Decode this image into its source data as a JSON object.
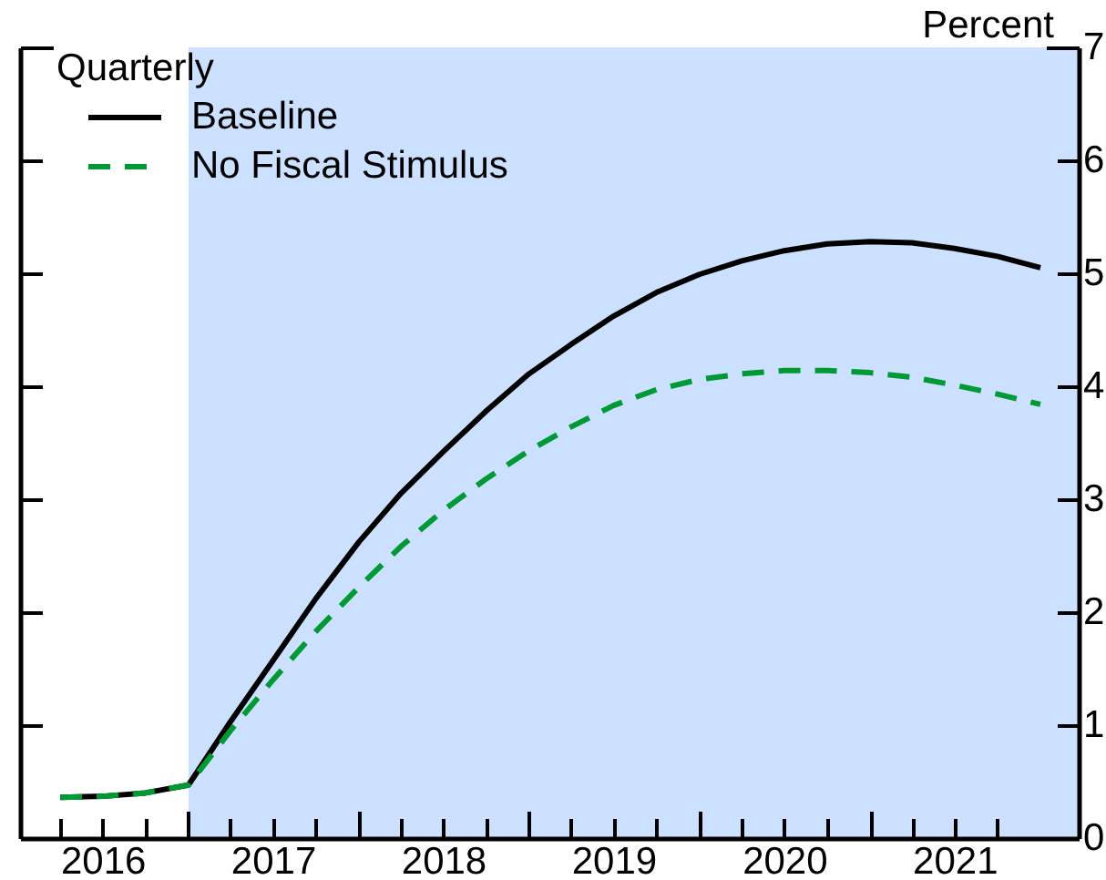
{
  "chart_data": {
    "type": "line",
    "ylabel": "Percent",
    "legend_title": "Quarterly",
    "legend": "top left",
    "x": [
      "2016-04-01",
      "2016-07-01",
      "2016-10-01",
      "2017-01-01",
      "2017-04-01",
      "2017-07-01",
      "2017-10-01",
      "2018-01-01",
      "2018-04-01",
      "2018-07-01",
      "2018-10-01",
      "2019-01-01",
      "2019-04-01",
      "2019-07-01",
      "2019-10-01",
      "2020-01-01",
      "2020-04-01",
      "2020-07-01",
      "2020-10-01",
      "2021-01-01",
      "2021-04-01",
      "2021-07-01",
      "2021-10-01",
      "2022-01-01"
    ],
    "series": [
      {
        "name": "Baseline",
        "color": "#000000",
        "line_style": "solid",
        "values": [
          0.36,
          0.37,
          0.4,
          0.47,
          1.03,
          1.57,
          2.12,
          2.62,
          3.05,
          3.42,
          3.78,
          4.11,
          4.37,
          4.62,
          4.83,
          4.99,
          5.11,
          5.2,
          5.26,
          5.28,
          5.27,
          5.22,
          5.15,
          5.05
        ]
      },
      {
        "name": "No Fiscal Stimulus",
        "color": "#009933",
        "line_style": "dashed",
        "values": [
          0.36,
          0.37,
          0.4,
          0.47,
          0.95,
          1.4,
          1.83,
          2.22,
          2.58,
          2.9,
          3.18,
          3.43,
          3.64,
          3.83,
          3.97,
          4.06,
          4.11,
          4.14,
          4.14,
          4.12,
          4.08,
          4.01,
          3.93,
          3.84
        ]
      }
    ],
    "xlim": [
      "2016-01-06",
      "2022-03-24"
    ],
    "xticks": [
      {
        "value": "2016-04-01",
        "label": null
      },
      {
        "value": "2016-07-01",
        "label": "2016"
      },
      {
        "value": "2016-10-01",
        "label": null
      },
      {
        "value": "2017-01-01",
        "label": null
      },
      {
        "value": "2017-04-01",
        "label": null
      },
      {
        "value": "2017-07-01",
        "label": "2017"
      },
      {
        "value": "2017-10-01",
        "label": null
      },
      {
        "value": "2018-01-01",
        "label": null
      },
      {
        "value": "2018-04-01",
        "label": null
      },
      {
        "value": "2018-07-01",
        "label": "2018"
      },
      {
        "value": "2018-10-01",
        "label": null
      },
      {
        "value": "2019-01-01",
        "label": null
      },
      {
        "value": "2019-04-01",
        "label": null
      },
      {
        "value": "2019-07-01",
        "label": "2019"
      },
      {
        "value": "2019-10-01",
        "label": null
      },
      {
        "value": "2020-01-01",
        "label": null
      },
      {
        "value": "2020-04-01",
        "label": null
      },
      {
        "value": "2020-07-01",
        "label": "2020"
      },
      {
        "value": "2020-10-01",
        "label": null
      },
      {
        "value": "2021-01-01",
        "label": null
      },
      {
        "value": "2021-04-01",
        "label": null
      },
      {
        "value": "2021-07-01",
        "label": "2021"
      },
      {
        "value": "2021-10-01",
        "label": null
      }
    ],
    "ylim": [
      0,
      7
    ],
    "yticks": [
      0,
      1,
      2,
      3,
      4,
      5,
      6,
      7
    ],
    "bands": [
      {
        "axis": "x",
        "from": "2017-01-01",
        "to": "2022-03-24",
        "color": "#cce0ff"
      }
    ]
  }
}
